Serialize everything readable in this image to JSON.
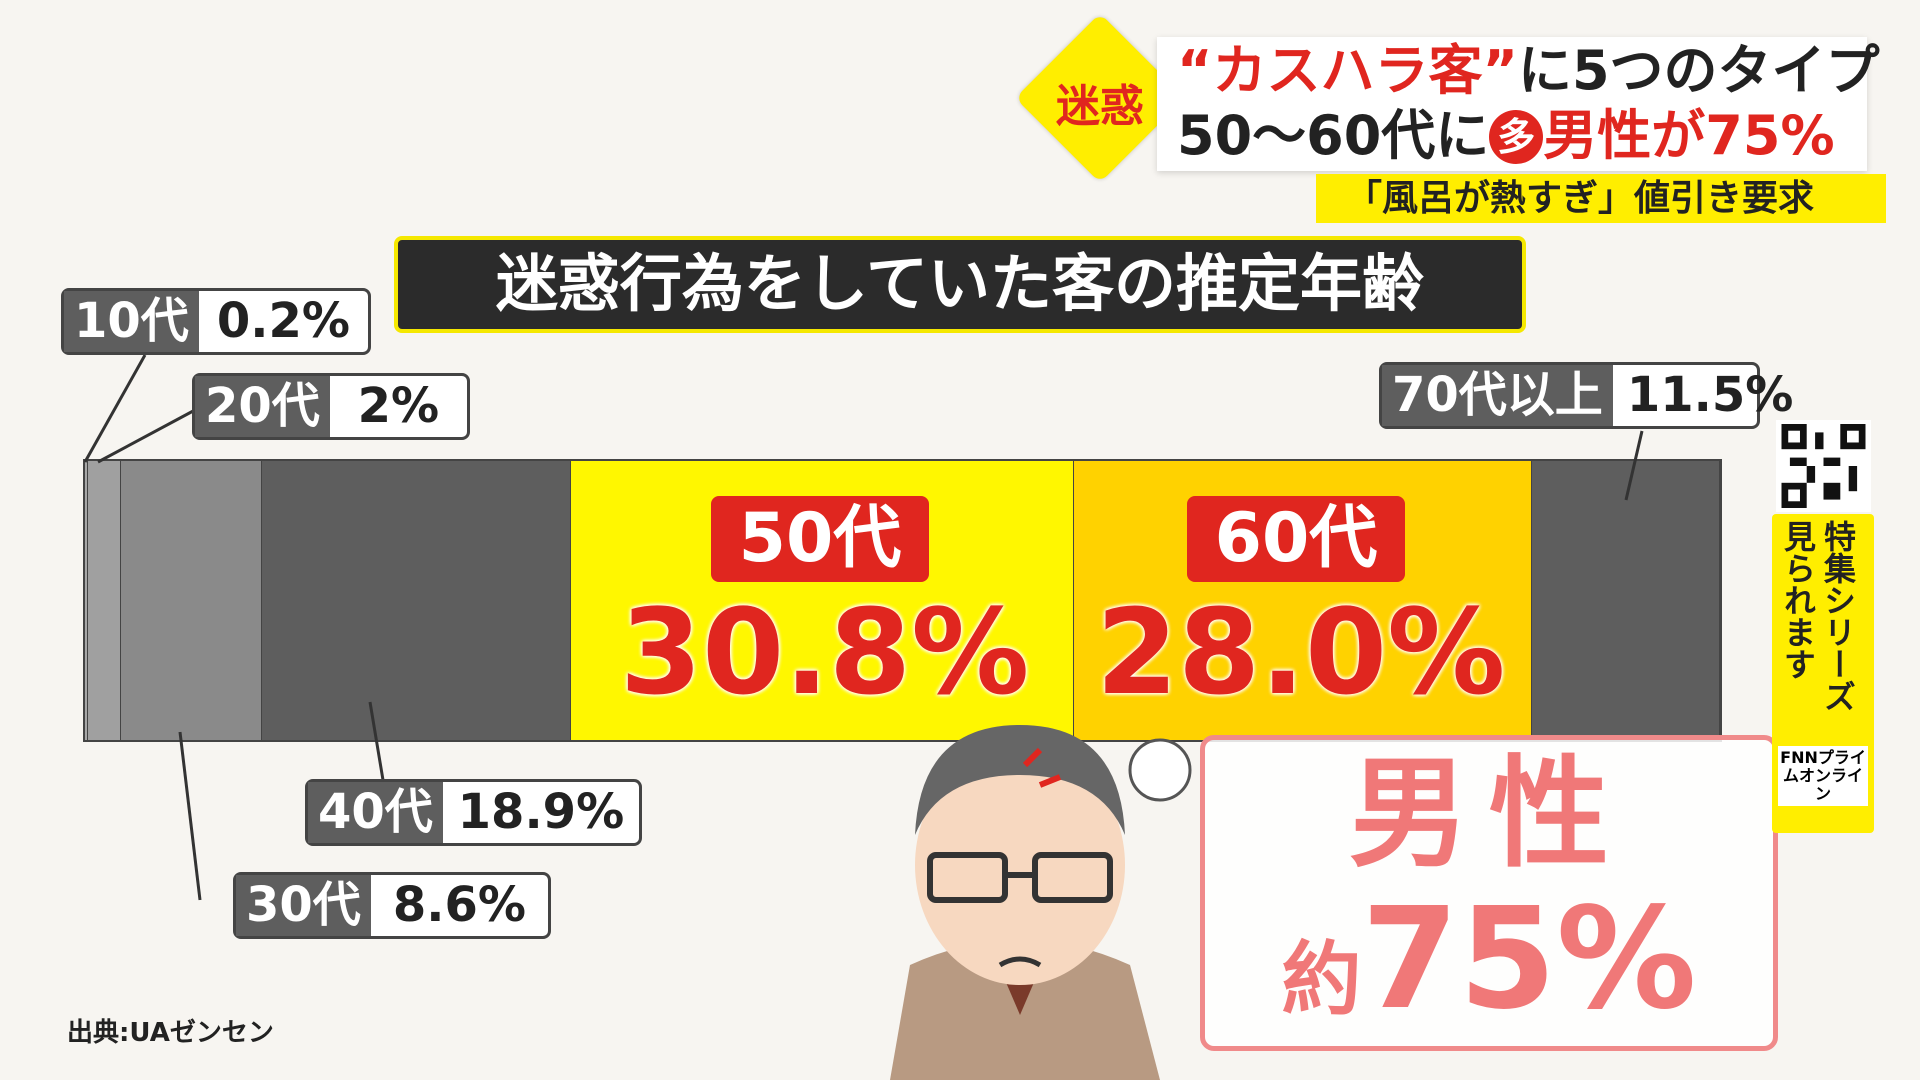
{
  "headline": {
    "badge": "迷惑",
    "line1_red": "“カスハラ客”",
    "line1_rest": "に5つのタイプ",
    "line2_a": "50〜60代に",
    "line2_circle": "多",
    "line2_red": "男性が75%",
    "sub": "「風呂が熱すぎ」値引き要求"
  },
  "side_panel": {
    "text": "特集シリーズ見られます",
    "logo": "FNNプライムオンライン",
    "qr_icon": "qr-code-icon"
  },
  "chart_data": {
    "type": "bar",
    "orientation": "horizontal-stacked-100",
    "title": "迷惑行為をしていた客の推定年齢",
    "categories": [
      "10代",
      "20代",
      "30代",
      "40代",
      "50代",
      "60代",
      "70代以上"
    ],
    "values": [
      0.2,
      2,
      8.6,
      18.9,
      30.8,
      28.0,
      11.5
    ],
    "value_labels": [
      "0.2%",
      "2%",
      "8.6%",
      "18.9%",
      "30.8%",
      "28.0%",
      "11.5%"
    ],
    "colors": [
      "#a8a8a8",
      "#a0a0a0",
      "#8a8a8a",
      "#5e5e5e",
      "#fff700",
      "#ffd200",
      "#5e5e5e"
    ],
    "unit": "%"
  },
  "callout": {
    "line1": "男性",
    "line2_prefix": "約",
    "line2_value": "75%"
  },
  "source": "出典:UAゼンセン"
}
